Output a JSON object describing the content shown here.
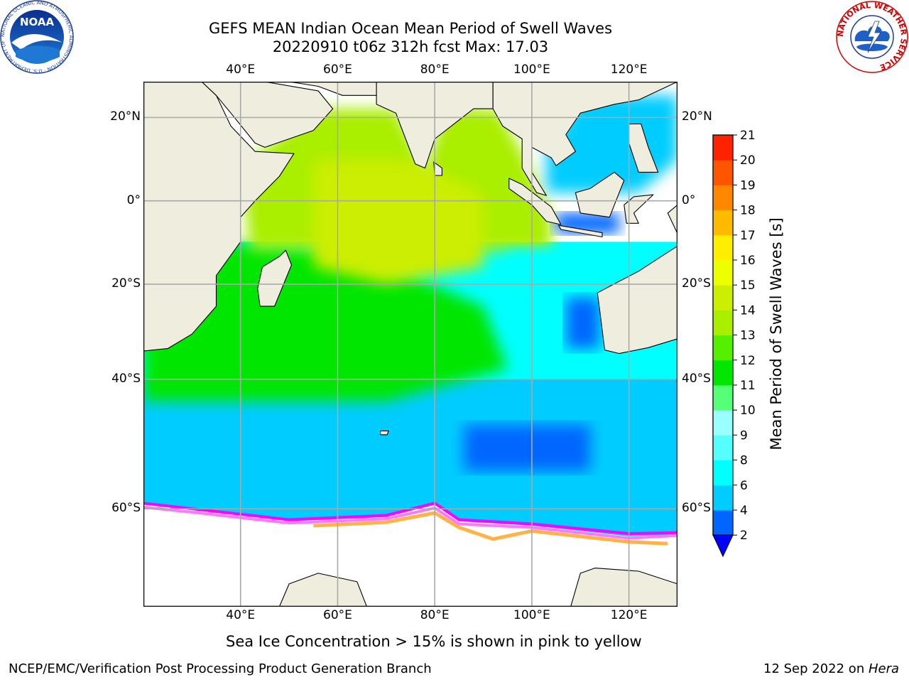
{
  "title_line1": "GEFS MEAN Indian Ocean Mean Period of Swell Waves",
  "title_line2": "20220910 t06z 312h fcst   Max: 17.03",
  "map": {
    "lon_range": [
      20,
      130
    ],
    "lat_range": [
      -70,
      28
    ],
    "lon_ticks": [
      {
        "value": 40,
        "label": "40°E"
      },
      {
        "value": 60,
        "label": "60°E"
      },
      {
        "value": 80,
        "label": "80°E"
      },
      {
        "value": 100,
        "label": "100°E"
      },
      {
        "value": 120,
        "label": "120°E"
      }
    ],
    "lat_ticks": [
      {
        "value": 20,
        "label": "20°N"
      },
      {
        "value": 0,
        "label": "0°"
      },
      {
        "value": -20,
        "label": "20°S"
      },
      {
        "value": -40,
        "label": "40°S"
      },
      {
        "value": -60,
        "label": "60°S"
      }
    ],
    "grid": true,
    "land_color": "#efedde",
    "ocean_regions": [
      {
        "name": "southern-band",
        "level": 5
      },
      {
        "name": "central-south",
        "level": 6
      },
      {
        "name": "arabian-sea",
        "level": 13
      },
      {
        "name": "bay-of-bengal",
        "level": 13
      },
      {
        "name": "equatorial-core",
        "level": 14
      },
      {
        "name": "sw-indian-ocean",
        "level": 11
      },
      {
        "name": "east-indian-ocean",
        "level": 6
      },
      {
        "name": "south-china-sea",
        "level": 5
      },
      {
        "name": "java-sea",
        "level": 3
      },
      {
        "name": "west-australia-coast",
        "level": 3
      },
      {
        "name": "kerguelen-patch",
        "level": 3
      }
    ],
    "sea_ice_colors": [
      "#ff00ff",
      "#ff77ff",
      "#ffb347",
      "#ffee44"
    ]
  },
  "colorbar": {
    "label": "Mean Period of Swell Waves [s]",
    "ticks": [
      2,
      4,
      6,
      8,
      9,
      10,
      11,
      12,
      13,
      14,
      15,
      16,
      17,
      18,
      19,
      20,
      21
    ],
    "colors": [
      "#0066ff",
      "#00ccff",
      "#00ffff",
      "#55ffff",
      "#99ffff",
      "#55ff77",
      "#00e600",
      "#55f000",
      "#aaee00",
      "#ccee00",
      "#eeff00",
      "#ffee00",
      "#ffbb00",
      "#ff8800",
      "#ff5500",
      "#ff2200"
    ],
    "extend_min_color": "#0000ff"
  },
  "caption": "Sea Ice Concentration > 15% is shown in pink to yellow",
  "footer_left": "NCEP/EMC/Verification Post Processing Product Generation Branch",
  "footer_right_prefix": "12 Sep 2022 on ",
  "footer_right_host": "Hera",
  "logos": {
    "noaa_text": "NOAA",
    "noaa_ring_text": "NATIONAL OCEANIC AND ATMOSPHERIC ADMINISTRATION · U.S. DEPARTMENT OF COMMERCE",
    "nws_ring_text": "NATIONAL WEATHER SERVICE"
  }
}
